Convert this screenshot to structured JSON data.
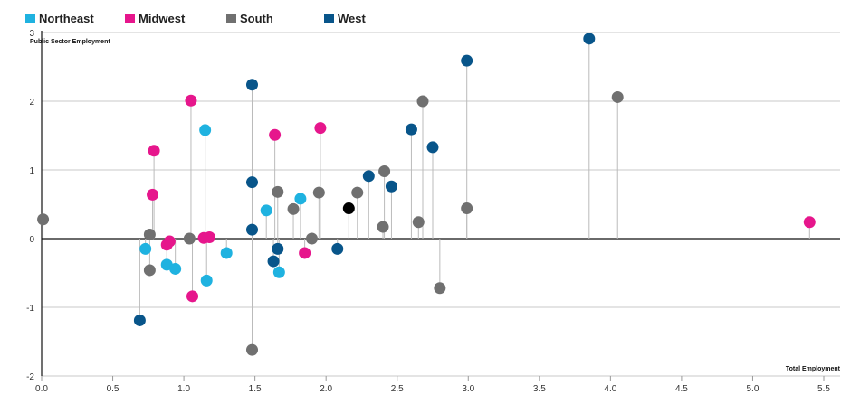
{
  "chart_data": {
    "type": "scatter",
    "title": "",
    "xlabel": "Total Employment",
    "ylabel": "Public Sector Employment",
    "xlim": [
      0,
      5.5
    ],
    "ylim": [
      -2,
      3
    ],
    "x_ticks": [
      "0.0",
      "0.5",
      "1.0",
      "1.5",
      "2.0",
      "2.5",
      "3.0",
      "3.5",
      "4.0",
      "4.5",
      "5.0",
      "5.5"
    ],
    "y_ticks": [
      "3",
      "2",
      "1",
      "0",
      "-1",
      "-2"
    ],
    "grid": "horizontal",
    "legend_position": "top-left",
    "stem_color": "#bbbbbb",
    "series": [
      {
        "name": "Northeast",
        "color": "#1fb2e0",
        "points": [
          [
            0.73,
            -0.15
          ],
          [
            0.88,
            -0.38
          ],
          [
            0.94,
            -0.44
          ],
          [
            1.15,
            1.58
          ],
          [
            1.16,
            -0.61
          ],
          [
            1.3,
            -0.21
          ],
          [
            1.58,
            0.41
          ],
          [
            1.67,
            -0.49
          ],
          [
            1.82,
            0.58
          ]
        ]
      },
      {
        "name": "Midwest",
        "color": "#e6168c",
        "points": [
          [
            0.78,
            0.64
          ],
          [
            0.79,
            1.28
          ],
          [
            0.88,
            -0.09
          ],
          [
            0.9,
            -0.04
          ],
          [
            1.05,
            2.01
          ],
          [
            1.06,
            -0.84
          ],
          [
            1.14,
            0.01
          ],
          [
            1.18,
            0.02
          ],
          [
            1.64,
            1.51
          ],
          [
            1.85,
            -0.21
          ],
          [
            1.96,
            1.61
          ],
          [
            5.4,
            0.24
          ]
        ]
      },
      {
        "name": "South",
        "color": "#707070",
        "points": [
          [
            0.01,
            0.28
          ],
          [
            0.76,
            0.06
          ],
          [
            0.76,
            -0.46
          ],
          [
            1.04,
            0.0
          ],
          [
            1.48,
            -1.62
          ],
          [
            1.66,
            0.68
          ],
          [
            1.77,
            0.43
          ],
          [
            1.9,
            0.0
          ],
          [
            1.95,
            0.67
          ],
          [
            2.22,
            0.67
          ],
          [
            2.4,
            0.17
          ],
          [
            2.41,
            0.98
          ],
          [
            2.65,
            0.24
          ],
          [
            2.68,
            2.0
          ],
          [
            2.8,
            -0.72
          ],
          [
            2.99,
            0.44
          ],
          [
            4.05,
            2.06
          ]
        ]
      },
      {
        "name": "West",
        "color": "#08558a",
        "points": [
          [
            0.69,
            -1.19
          ],
          [
            1.48,
            2.24
          ],
          [
            1.48,
            0.82
          ],
          [
            1.48,
            0.13
          ],
          [
            1.63,
            -0.33
          ],
          [
            1.66,
            -0.15
          ],
          [
            2.08,
            -0.15
          ],
          [
            2.3,
            0.91
          ],
          [
            2.46,
            0.76
          ],
          [
            2.6,
            1.59
          ],
          [
            2.75,
            1.33
          ],
          [
            2.99,
            2.59
          ],
          [
            3.85,
            2.91
          ]
        ]
      },
      {
        "name": "",
        "color": "#000000",
        "points": [
          [
            2.16,
            0.44
          ]
        ]
      }
    ]
  }
}
